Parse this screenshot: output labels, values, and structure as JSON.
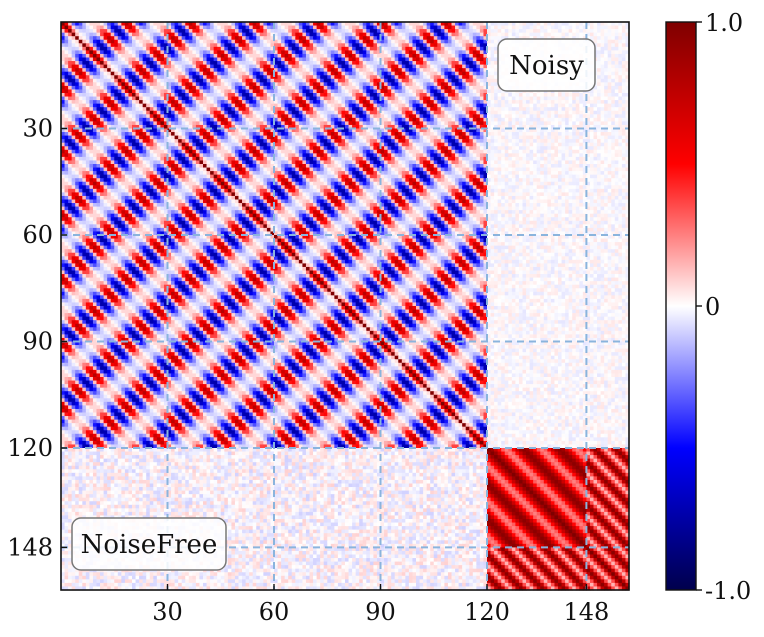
{
  "chart_data": {
    "type": "heatmap",
    "title": "",
    "xlabel": "",
    "ylabel": "",
    "matrix_size": 160,
    "x_ticks": [
      30,
      60,
      90,
      120,
      148
    ],
    "y_ticks": [
      30,
      60,
      90,
      120,
      148
    ],
    "block_boundaries": [
      30,
      60,
      90,
      120,
      148
    ],
    "annotations": {
      "upper": "Noisy",
      "lower": "NoiseFree"
    },
    "colorbar": {
      "colormap": "seismic",
      "min": -1.0,
      "max": 1.0,
      "tick_values": [
        1.0,
        0,
        -1.0
      ],
      "tick_labels": [
        "1.0",
        "0",
        "-1.0"
      ]
    },
    "block_description": {
      "block_1": {
        "range": [
          0,
          120
        ],
        "pattern": "strong oscillating correlation (red/blue)"
      },
      "block_2": {
        "range": [
          120,
          160
        ],
        "pattern": "strong positive correlation (red)"
      },
      "off_block": "weak correlation near 0"
    },
    "colors": {
      "positive": "#cc0000",
      "negative": "#1010e0",
      "zero": "#ffffff",
      "grid_dash": "#8ab4dd"
    }
  }
}
